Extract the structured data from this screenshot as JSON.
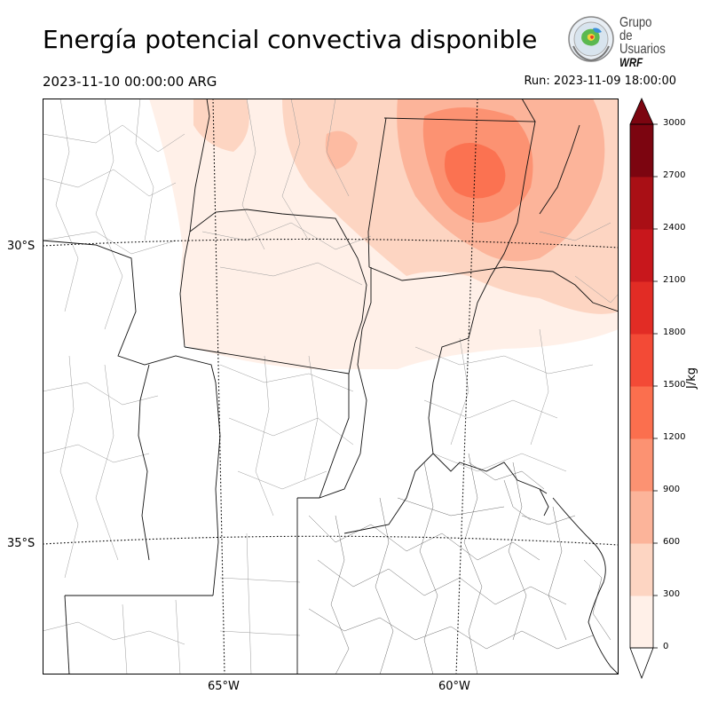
{
  "header": {
    "title": "Energía potencial convectiva disponible",
    "valid_time": "2023-11-10 00:00:00 ARG",
    "run_time": "Run: 2023-11-09 18:00:00"
  },
  "logo": {
    "line1": "Grupo de",
    "line2": "Usuarios",
    "line3": "WRF"
  },
  "map": {
    "lat_labels": [
      "30°S",
      "35°S"
    ],
    "lon_labels": [
      "65°W",
      "60°W"
    ],
    "gridlines": "dotted"
  },
  "colorbar": {
    "unit": "J/kg",
    "ticks": [
      "0",
      "300",
      "600",
      "900",
      "1200",
      "1500",
      "1800",
      "2100",
      "2400",
      "2700",
      "3000"
    ],
    "colors": [
      "#fff0e8",
      "#fdd5c2",
      "#fcb49a",
      "#fc9272",
      "#fb6f4e",
      "#f34a36",
      "#e22c25",
      "#c8171c",
      "#a90f15",
      "#7c0510"
    ],
    "extend": "both"
  }
}
